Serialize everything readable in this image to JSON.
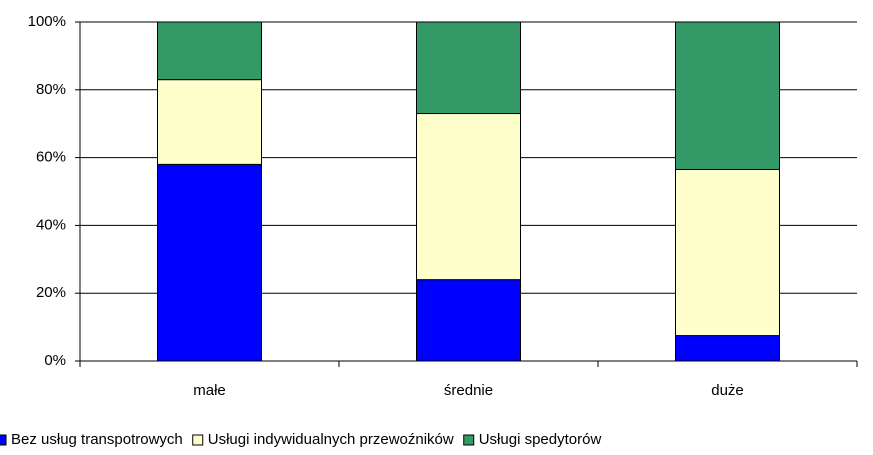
{
  "chart_data": {
    "type": "stacked_bar",
    "categories": [
      "małe",
      "średnie",
      "duże"
    ],
    "series": [
      {
        "name": "Bez usług transpotrowych",
        "color": "#0000ff",
        "values": [
          58,
          24,
          7.5
        ]
      },
      {
        "name": "Usługi indywidualnych przewoźników",
        "color": "#ffffcc",
        "values": [
          25,
          49,
          49
        ]
      },
      {
        "name": "Usługi spedytorów",
        "color": "#339966",
        "values": [
          17,
          27,
          43.5
        ]
      }
    ],
    "ylim": [
      0,
      100
    ],
    "yticks": [
      {
        "value": 0,
        "label": "0%"
      },
      {
        "value": 20,
        "label": "20%"
      },
      {
        "value": 40,
        "label": "40%"
      },
      {
        "value": 60,
        "label": "60%"
      },
      {
        "value": 80,
        "label": "80%"
      },
      {
        "value": 100,
        "label": "100%"
      }
    ],
    "grid": true,
    "legend": "bottom"
  }
}
